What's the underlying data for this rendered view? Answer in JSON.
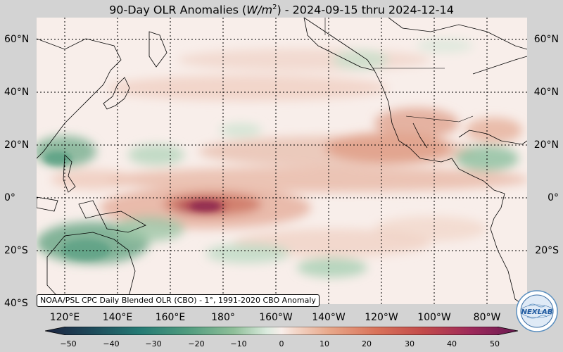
{
  "title": {
    "prefix": "90-Day OLR Anomalies (",
    "unit_base": "W/m",
    "unit_exp": "2",
    "suffix": ") - 2024-09-15 thru 2024-12-14"
  },
  "lat_labels": [
    "60°N",
    "40°N",
    "20°N",
    "0°",
    "20°S",
    "40°S"
  ],
  "lon_labels": [
    "120°E",
    "140°E",
    "160°E",
    "180°",
    "160°W",
    "140°W",
    "120°W",
    "100°W",
    "80°W"
  ],
  "attribution": "NOAA/PSL CPC Daily Blended OLR (CBO) - 1°, 1991-2020 CBO Anomaly",
  "colorbar": {
    "ticks": [
      "−50",
      "−40",
      "−30",
      "−20",
      "−10",
      "0",
      "10",
      "20",
      "30",
      "40",
      "50"
    ],
    "range": [
      -50,
      50
    ],
    "negative_colors": [
      "#1c2340",
      "#1e4a5a",
      "#257a74",
      "#4f9b7e",
      "#8fbf99",
      "#c9e0cc"
    ],
    "positive_colors": [
      "#f3d6c8",
      "#e8a88a",
      "#d9735a",
      "#c24a4a",
      "#9e2a5a",
      "#6a1a52"
    ],
    "neutral_color": "#f8eeea"
  },
  "logo": {
    "text": "NEXLAB",
    "icon": "nexlab-globe-logo"
  },
  "colors": {
    "ocean_background": "#f8eeea",
    "graticule": "#000000",
    "coastline": "#000000"
  }
}
